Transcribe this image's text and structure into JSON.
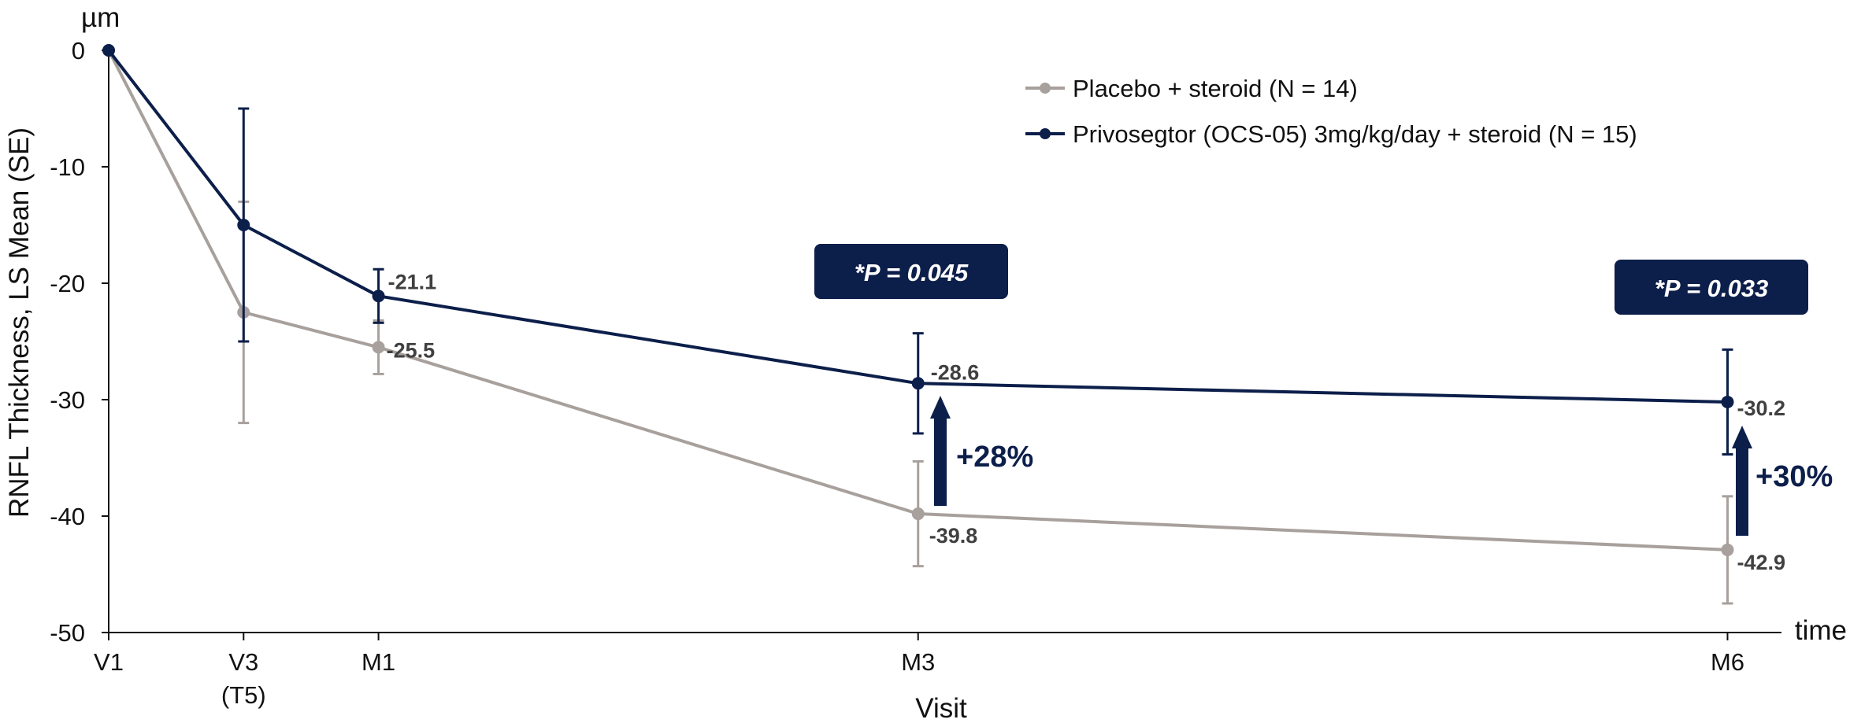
{
  "chart_data": {
    "type": "line",
    "y_unit_label": "µm",
    "ylabel": "RNFL Thickness,  LS Mean  (SE)",
    "xlabel": "Visit",
    "x_axis_end_label": "time",
    "ylim": [
      -50,
      0
    ],
    "yticks": [
      0,
      -10,
      -20,
      -30,
      -40,
      -50
    ],
    "ytick_labels": [
      "0",
      "-10",
      "-20",
      "-30",
      "-40",
      "-50"
    ],
    "x_time_months": [
      0,
      0.5,
      1,
      3,
      6
    ],
    "xlim": [
      0,
      6.2
    ],
    "tick_labels": [
      {
        "label": "V1",
        "sub": ""
      },
      {
        "label": "V3",
        "sub": "(T5)"
      },
      {
        "label": "M1",
        "sub": ""
      },
      {
        "label": "M3",
        "sub": ""
      },
      {
        "label": "M6",
        "sub": ""
      }
    ],
    "legend_position": "top-right",
    "series": [
      {
        "name": "Placebo + steroid (N = 14)",
        "color": "#a8a09c",
        "values": [
          0,
          -22.5,
          -25.5,
          -39.8,
          -42.9
        ],
        "se": [
          0,
          9.5,
          2.3,
          4.5,
          4.6
        ],
        "data_labels": [
          "",
          "",
          "-25.5",
          "-39.8",
          "-42.9"
        ]
      },
      {
        "name": "Privosegtor (OCS-05) 3mg/kg/day + steroid (N = 15)",
        "color": "#0c1e4a",
        "values": [
          0,
          -15,
          -21.1,
          -28.6,
          -30.2
        ],
        "se": [
          0,
          10,
          2.3,
          4.3,
          4.5
        ],
        "data_labels": [
          "",
          "",
          "-21.1",
          "-28.6",
          "-30.2"
        ]
      }
    ],
    "annotations": [
      {
        "visit": "M3",
        "p_value_text": "*P = 0.045",
        "improvement": "+28%"
      },
      {
        "visit": "M6",
        "p_value_text": "*P = 0.033",
        "improvement": "+30%"
      }
    ],
    "colors": {
      "annotation_box": "#0c1e4a",
      "axis": "#111111"
    }
  }
}
